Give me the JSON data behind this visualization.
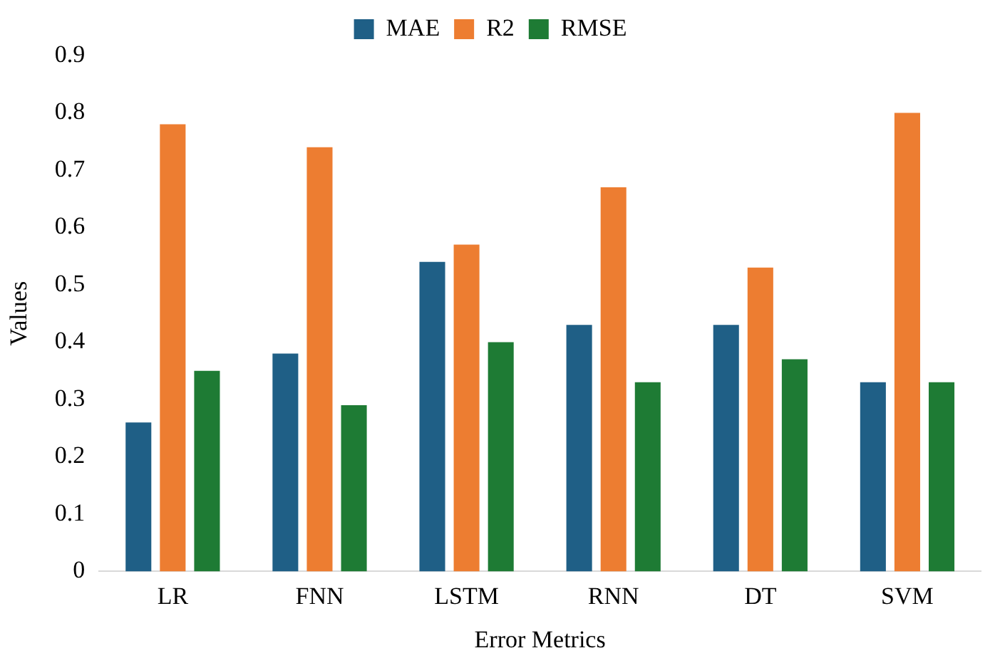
{
  "chart_data": {
    "type": "bar",
    "xlabel": "Error Metrics",
    "ylabel": "Values",
    "categories": [
      "LR",
      "FNN",
      "LSTM",
      "RNN",
      "DT",
      "SVM"
    ],
    "series": [
      {
        "name": "MAE",
        "color": "#1f5f86",
        "values": [
          0.26,
          0.38,
          0.54,
          0.43,
          0.43,
          0.33
        ]
      },
      {
        "name": "R2",
        "color": "#ed7d31",
        "values": [
          0.78,
          0.74,
          0.57,
          0.67,
          0.53,
          0.8
        ]
      },
      {
        "name": "RMSE",
        "color": "#1e7b34",
        "values": [
          0.35,
          0.29,
          0.4,
          0.33,
          0.37,
          0.33
        ]
      }
    ],
    "ylim": [
      0,
      0.9
    ],
    "yticks": [
      0,
      0.1,
      0.2,
      0.3,
      0.4,
      0.5,
      0.6,
      0.7,
      0.8,
      0.9
    ],
    "grid": false,
    "legend": "top"
  }
}
